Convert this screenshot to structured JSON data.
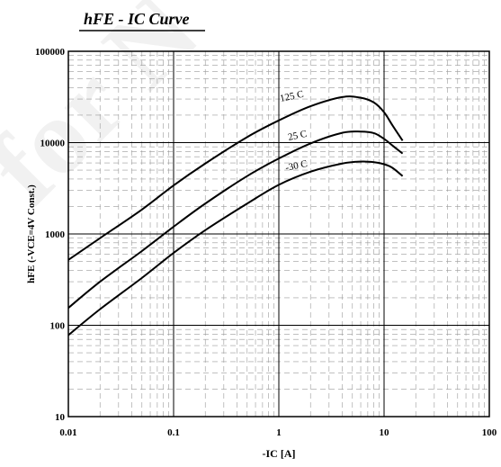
{
  "chart_data": {
    "type": "line",
    "title": "hFE - IC Curve",
    "xlabel": "-IC [A]",
    "ylabel": "hFE  (-VCE=4V  Const.)",
    "xscale": "log",
    "yscale": "log",
    "xlim": [
      0.01,
      100
    ],
    "ylim": [
      10,
      100000
    ],
    "grid": true,
    "minor_grid": "dashed",
    "x_ticks": [
      0.01,
      0.1,
      1,
      10,
      100
    ],
    "x_tick_labels": [
      "0.01",
      "0.1",
      "1",
      "10",
      "100"
    ],
    "y_ticks": [
      10,
      100,
      1000,
      10000,
      100000
    ],
    "y_tick_labels": [
      "10",
      "100",
      "1000",
      "10000",
      "100000"
    ],
    "series": [
      {
        "name": "125 C",
        "x": [
          0.01,
          0.02,
          0.05,
          0.1,
          0.2,
          0.5,
          1,
          2,
          4,
          6,
          8,
          10,
          12,
          15
        ],
        "y": [
          520,
          900,
          1850,
          3400,
          5900,
          11500,
          17500,
          25000,
          31500,
          31000,
          27500,
          21500,
          15500,
          10500
        ]
      },
      {
        "name": "25 C",
        "x": [
          0.01,
          0.02,
          0.05,
          0.1,
          0.2,
          0.5,
          1,
          2,
          4,
          6,
          8,
          10,
          12,
          15
        ],
        "y": [
          155,
          300,
          650,
          1200,
          2150,
          4300,
          6700,
          9800,
          12800,
          13200,
          12700,
          11000,
          9300,
          7600
        ]
      },
      {
        "name": "-30 C",
        "x": [
          0.01,
          0.02,
          0.05,
          0.1,
          0.2,
          0.5,
          1,
          2,
          4,
          6,
          8,
          10,
          12,
          15
        ],
        "y": [
          78,
          150,
          330,
          620,
          1100,
          2150,
          3450,
          4800,
          5900,
          6200,
          6100,
          5800,
          5300,
          4300
        ]
      }
    ],
    "line_color": "#000000"
  },
  "watermark": {
    "text": "for N"
  }
}
